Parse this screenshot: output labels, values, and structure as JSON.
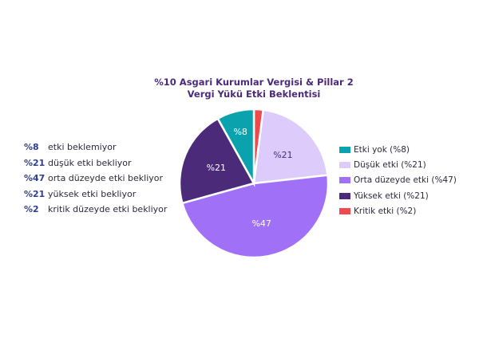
{
  "chart_data": {
    "type": "pie",
    "title": [
      "%10 Asgari Kurumlar Vergisi & Pillar 2",
      "Vergi Yükü Etki Beklentisi"
    ],
    "slices": [
      {
        "name": "Kritik etki (%2)",
        "value": 2,
        "label": "",
        "color": "#f0494b"
      },
      {
        "name": "Düşük etki (%21)",
        "value": 21,
        "label": "%21",
        "color": "#dccbfb"
      },
      {
        "name": "Orta düzeyde etki (%47)",
        "value": 47,
        "label": "%47",
        "color": "#a070f7"
      },
      {
        "name": "Yüksek etki (%21)",
        "value": 21,
        "label": "%21",
        "color": "#4b2a7a"
      },
      {
        "name": "Etki yok (%8)",
        "value": 8,
        "label": "%8",
        "color": "#0aa2ad"
      }
    ],
    "legend": [
      {
        "label": "Etki yok (%8)",
        "color": "#0aa2ad"
      },
      {
        "label": "Düşük etki (%21)",
        "color": "#dccbfb"
      },
      {
        "label": "Orta düzeyde etki (%47)",
        "color": "#a070f7"
      },
      {
        "label": "Yüksek etki (%21)",
        "color": "#4b2a7a"
      },
      {
        "label": "Kritik etki (%2)",
        "color": "#f0494b"
      }
    ],
    "legend_position": "right",
    "annotations": [
      {
        "pct": "%8",
        "text": "etki beklemiyor"
      },
      {
        "pct": "%21",
        "text": "düşük etki bekliyor"
      },
      {
        "pct": "%47",
        "text": "orta düzeyde etki bekliyor"
      },
      {
        "pct": "%21",
        "text": "yüksek etki bekliyor"
      },
      {
        "pct": "%2",
        "text": "kritik düzeyde etki bekliyor"
      }
    ]
  }
}
